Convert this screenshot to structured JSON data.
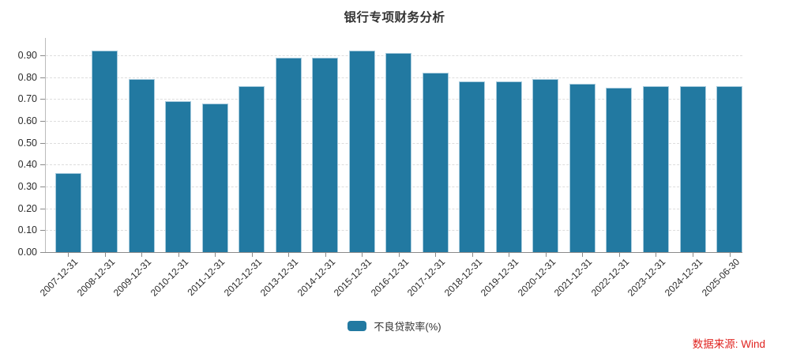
{
  "header": {
    "title": "银行专项财务分析"
  },
  "chart_data": {
    "type": "bar",
    "title": "银行专项财务分析",
    "categories": [
      "2007-12-31",
      "2008-12-31",
      "2009-12-31",
      "2010-12-31",
      "2011-12-31",
      "2012-12-31",
      "2013-12-31",
      "2014-12-31",
      "2015-12-31",
      "2016-12-31",
      "2017-12-31",
      "2018-12-31",
      "2019-12-31",
      "2020-12-31",
      "2021-12-31",
      "2022-12-31",
      "2023-12-31",
      "2024-12-31",
      "2025-06-30"
    ],
    "series": [
      {
        "name": "不良贷款率(%)",
        "values": [
          0.36,
          0.92,
          0.79,
          0.69,
          0.68,
          0.76,
          0.89,
          0.89,
          0.92,
          0.91,
          0.82,
          0.78,
          0.78,
          0.79,
          0.77,
          0.75,
          0.76,
          0.76,
          0.76
        ]
      }
    ],
    "xlabel": "",
    "ylabel": "",
    "ylim": [
      0,
      0.98
    ],
    "yticks": [
      0.0,
      0.1,
      0.2,
      0.3,
      0.4,
      0.5,
      0.6,
      0.7,
      0.8,
      0.9
    ],
    "grid": "horizontal-dashed",
    "legend_position": "bottom-center",
    "x_label_rotation": -45,
    "colors": {
      "bar": "#2279A1",
      "bar_edge": "#A9CCDE",
      "grid": "#DDDDDD",
      "axis": "#8A8A8A",
      "text": "#333333",
      "source": "#E02420"
    }
  },
  "footer": {
    "source": "数据来源: Wind"
  }
}
